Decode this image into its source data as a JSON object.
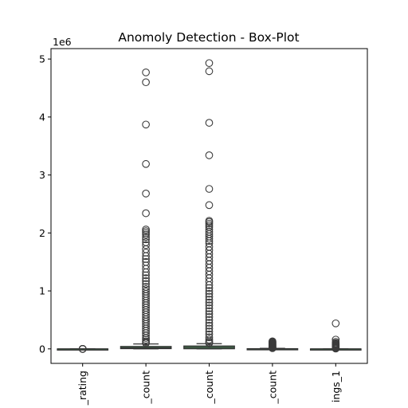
{
  "chart_data": {
    "type": "boxplot",
    "title": "Anomoly Detection - Box-Plot",
    "xlabel": "",
    "ylabel": "",
    "y_offset_label": "1e6",
    "y_scale": 1000000,
    "ylim": [
      -0.25,
      5.18
    ],
    "yticks": [
      0,
      1,
      2,
      3,
      4,
      5
    ],
    "grid": false,
    "categories": [
      "_rating",
      "_count",
      "_count",
      "_count",
      "ings_1"
    ],
    "boxes": [
      {
        "category": "_rating",
        "q1": 0,
        "median": 0,
        "q3": 0,
        "whisker_low": 0,
        "whisker_high": 0,
        "outliers": [
          0,
          0,
          0,
          0,
          0,
          0
        ]
      },
      {
        "category": "_count",
        "q1": 0.004,
        "median": 0.02,
        "q3": 0.042,
        "whisker_low": 0,
        "whisker_high": 0.085,
        "outliers": [
          4.77,
          4.6,
          3.87,
          3.19,
          2.68,
          2.34,
          2.06,
          2.03,
          2.0,
          1.97,
          1.93,
          1.89,
          1.84,
          1.79,
          1.72,
          1.66,
          1.6,
          1.55,
          1.5,
          1.44,
          1.38,
          1.32,
          1.27,
          1.22,
          1.17,
          1.12,
          1.07,
          1.03,
          0.99,
          0.95,
          0.91,
          0.87,
          0.83,
          0.79,
          0.75,
          0.71,
          0.67,
          0.63,
          0.59,
          0.55,
          0.51,
          0.47,
          0.43,
          0.39,
          0.35,
          0.31,
          0.27,
          0.23,
          0.19,
          0.16,
          0.13,
          0.11,
          0.1
        ]
      },
      {
        "category": "_count",
        "q1": 0.002,
        "median": 0.025,
        "q3": 0.05,
        "whisker_low": 0,
        "whisker_high": 0.09,
        "outliers": [
          4.93,
          4.79,
          3.9,
          3.34,
          2.76,
          2.48,
          2.21,
          2.19,
          2.16,
          2.13,
          2.1,
          2.06,
          2.02,
          1.98,
          1.94,
          1.9,
          1.86,
          1.82,
          1.76,
          1.7,
          1.64,
          1.58,
          1.52,
          1.46,
          1.4,
          1.34,
          1.28,
          1.22,
          1.16,
          1.1,
          1.05,
          1.0,
          0.95,
          0.9,
          0.85,
          0.8,
          0.75,
          0.7,
          0.65,
          0.6,
          0.55,
          0.5,
          0.45,
          0.4,
          0.35,
          0.3,
          0.25,
          0.2,
          0.16,
          0.13,
          0.11,
          0.1
        ]
      },
      {
        "category": "_count",
        "q1": 0,
        "median": 0,
        "q3": 0.004,
        "whisker_low": 0,
        "whisker_high": 0.009,
        "outliers": [
          0.13,
          0.12,
          0.11,
          0.1,
          0.09,
          0.08,
          0.07,
          0.06,
          0.05,
          0.04,
          0.03,
          0.02,
          0.015,
          0.012
        ]
      },
      {
        "category": "ings_1",
        "q1": 0,
        "median": 0,
        "q3": 0,
        "whisker_low": 0,
        "whisker_high": 0,
        "outliers": [
          0.44,
          0.16,
          0.12,
          0.1,
          0.09,
          0.08,
          0.07,
          0.06,
          0.05,
          0.04,
          0.03,
          0.02,
          0.015,
          0.01,
          0.005
        ]
      }
    ],
    "colors": {
      "box_fill": "#4d8c5a",
      "box_edge": "#333333",
      "outlier_edge": "#3b3b3b",
      "axis": "#000000"
    }
  }
}
